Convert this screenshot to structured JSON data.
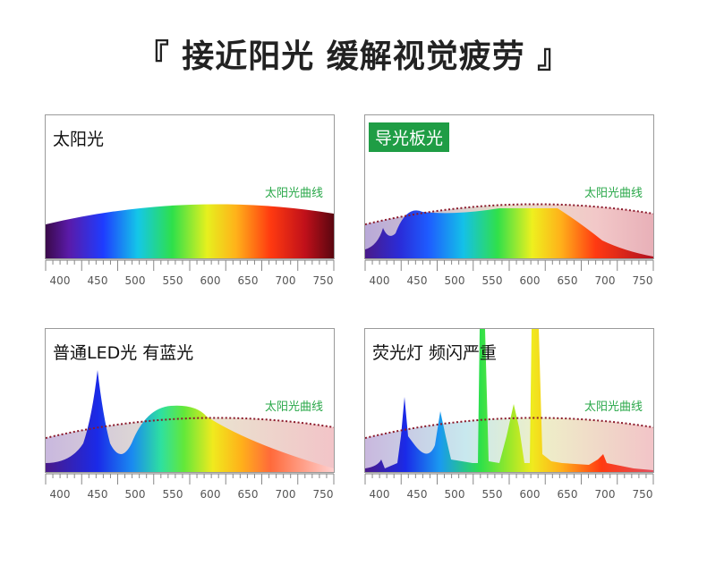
{
  "title": "『 接近阳光 缓解视觉疲劳 』",
  "curve_label": "太阳光曲线",
  "ticks": [
    "400",
    "450",
    "500",
    "550",
    "600",
    "650",
    "700",
    "750"
  ],
  "colors": {
    "curve": "#8b1a2b",
    "tag_bg": "#1f9d45",
    "curve_label": "#2aa84a"
  },
  "panels": [
    {
      "label": "太阳光",
      "highlight": false
    },
    {
      "label": "导光板光",
      "highlight": true
    },
    {
      "label": "普通LED光 有蓝光",
      "highlight": false
    },
    {
      "label": "荧光灯 频闪严重",
      "highlight": false
    }
  ]
}
